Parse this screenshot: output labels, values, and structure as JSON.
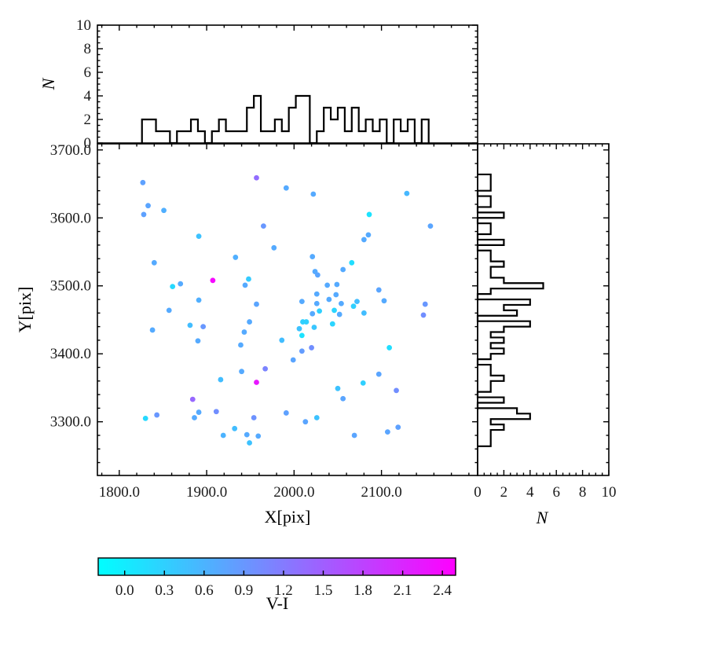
{
  "figure": {
    "background": "#ffffff",
    "axis_color": "#000000"
  },
  "labels": {
    "main_xlabel": "X[pix]",
    "main_ylabel": "Y[pix]",
    "top_hist_ylabel": "N",
    "right_hist_xlabel": "N",
    "colorbar_label": "V-I"
  },
  "chart_data": [
    {
      "id": "main-scatter",
      "type": "scatter",
      "xlabel": "X[pix]",
      "ylabel": "Y[pix]",
      "xlim": [
        1775,
        2210
      ],
      "ylim": [
        3221,
        3709
      ],
      "xticks": {
        "values": [
          1800,
          1900,
          2000,
          2100
        ],
        "labels": [
          "1800.0",
          "1900.0",
          "2000.0",
          "2100.0"
        ]
      },
      "yticks": {
        "values": [
          3700,
          3600,
          3500,
          3400,
          3300
        ],
        "labels": [
          "3700.0",
          "3600.0",
          "3500.0",
          "3400.0",
          "3300.0"
        ]
      },
      "minor_step_x": 20,
      "minor_step_y": 20,
      "color_scale_label": "V-I",
      "points_format": [
        "x_pix",
        "y_pix",
        "v_minus_i"
      ],
      "points": [
        [
          1827,
          3652,
          0.8
        ],
        [
          1957,
          3659,
          1.35
        ],
        [
          1991,
          3644,
          0.7
        ],
        [
          1833,
          3618,
          0.75
        ],
        [
          1828,
          3605,
          0.8
        ],
        [
          1851,
          3611,
          0.65
        ],
        [
          1965,
          3588,
          0.9
        ],
        [
          1891,
          3573,
          0.45
        ],
        [
          1977,
          3556,
          0.7
        ],
        [
          1933,
          3542,
          0.65
        ],
        [
          1840,
          3534,
          0.7
        ],
        [
          1861,
          3499,
          0.2
        ],
        [
          1870,
          3503,
          0.7
        ],
        [
          1907,
          3508,
          2.4
        ],
        [
          1948,
          3510,
          0.35
        ],
        [
          1944,
          3501,
          0.7
        ],
        [
          1891,
          3479,
          0.65
        ],
        [
          1957,
          3473,
          0.75
        ],
        [
          2022,
          3635,
          0.7
        ],
        [
          2129,
          3636,
          0.55
        ],
        [
          2086,
          3605,
          0.1
        ],
        [
          2156,
          3588,
          0.75
        ],
        [
          2085,
          3575,
          0.7
        ],
        [
          2080,
          3568,
          0.7
        ],
        [
          2021,
          3543,
          0.7
        ],
        [
          2066,
          3534,
          0.15
        ],
        [
          2056,
          3524,
          0.7
        ],
        [
          2024,
          3521,
          0.7
        ],
        [
          2027,
          3516,
          0.75
        ],
        [
          2038,
          3501,
          0.7
        ],
        [
          2049,
          3502,
          0.7
        ],
        [
          2026,
          3488,
          0.7
        ],
        [
          2048,
          3487,
          0.7
        ],
        [
          2097,
          3494,
          0.75
        ],
        [
          2040,
          3480,
          0.7
        ],
        [
          2054,
          3474,
          0.7
        ],
        [
          2072,
          3477,
          0.5
        ],
        [
          2103,
          3478,
          0.7
        ],
        [
          2150,
          3473,
          0.9
        ],
        [
          2009,
          3477,
          0.7
        ],
        [
          2026,
          3474,
          0.7
        ],
        [
          1857,
          3464,
          0.7
        ],
        [
          1881,
          3442,
          0.5
        ],
        [
          1896,
          3440,
          0.9
        ],
        [
          1838,
          3435,
          0.7
        ],
        [
          1890,
          3419,
          0.7
        ],
        [
          1939,
          3413,
          0.7
        ],
        [
          1949,
          3447,
          0.7
        ],
        [
          1943,
          3432,
          0.7
        ],
        [
          1986,
          3420,
          0.5
        ],
        [
          1967,
          3378,
          1.1
        ],
        [
          1940,
          3374,
          0.7
        ],
        [
          1916,
          3362,
          0.5
        ],
        [
          1957,
          3358,
          2.25
        ],
        [
          1884,
          3333,
          1.4
        ],
        [
          1891,
          3314,
          0.7
        ],
        [
          1911,
          3315,
          1.0
        ],
        [
          1886,
          3306,
          0.7
        ],
        [
          1843,
          3310,
          0.9
        ],
        [
          1830,
          3305,
          0.2
        ],
        [
          1954,
          3306,
          0.95
        ],
        [
          1932,
          3290,
          0.5
        ],
        [
          1919,
          3280,
          0.6
        ],
        [
          1946,
          3281,
          0.7
        ],
        [
          1959,
          3279,
          0.7
        ],
        [
          1949,
          3269,
          0.45
        ],
        [
          1991,
          3313,
          0.8
        ],
        [
          2021,
          3459,
          0.7
        ],
        [
          2029,
          3463,
          0.3
        ],
        [
          2046,
          3464,
          0.25
        ],
        [
          2052,
          3458,
          0.7
        ],
        [
          2068,
          3470,
          0.3
        ],
        [
          2080,
          3460,
          0.5
        ],
        [
          2148,
          3457,
          1.0
        ],
        [
          2010,
          3447,
          0.3
        ],
        [
          2014,
          3447,
          0.3
        ],
        [
          2023,
          3439,
          0.4
        ],
        [
          2044,
          3444,
          0.25
        ],
        [
          2006,
          3437,
          0.45
        ],
        [
          2009,
          3427,
          0.1
        ],
        [
          2020,
          3409,
          1.0
        ],
        [
          2009,
          3404,
          0.85
        ],
        [
          1999,
          3391,
          0.75
        ],
        [
          2109,
          3409,
          0.15
        ],
        [
          2097,
          3370,
          0.75
        ],
        [
          2079,
          3357,
          0.3
        ],
        [
          2050,
          3349,
          0.45
        ],
        [
          2117,
          3346,
          1.0
        ],
        [
          2056,
          3334,
          0.75
        ],
        [
          2026,
          3306,
          0.45
        ],
        [
          2013,
          3300,
          0.75
        ],
        [
          2119,
          3292,
          0.8
        ],
        [
          2107,
          3285,
          0.75
        ],
        [
          2069,
          3280,
          0.75
        ]
      ]
    },
    {
      "id": "top-histogram",
      "type": "bar",
      "orientation": "vertical",
      "ylabel": "N",
      "ylim": [
        0,
        10
      ],
      "yticks": {
        "values": [
          0,
          2,
          4,
          6,
          8,
          10
        ],
        "labels": [
          "0",
          "2",
          "4",
          "6",
          "8",
          "10"
        ]
      },
      "minor_step": 0.5,
      "bin_start": 1826,
      "bin_step": 8,
      "counts": [
        2,
        2,
        1,
        1,
        0,
        1,
        1,
        2,
        1,
        0,
        1,
        2,
        1,
        1,
        1,
        3,
        4,
        1,
        1,
        2,
        1,
        3,
        4,
        4,
        0,
        1,
        3,
        2,
        3,
        1,
        3,
        1,
        2,
        1,
        2,
        0,
        2,
        1,
        2,
        0,
        2
      ]
    },
    {
      "id": "right-histogram",
      "type": "bar",
      "orientation": "horizontal",
      "xlabel": "N",
      "xlim": [
        0,
        10
      ],
      "xticks": {
        "values": [
          0,
          2,
          4,
          6,
          8,
          10
        ],
        "labels": [
          "0",
          "2",
          "4",
          "6",
          "8",
          "10"
        ]
      },
      "minor_step": 0.5,
      "bin_start": 3664,
      "bin_step": -8,
      "counts": [
        1,
        1,
        1,
        0,
        1,
        1,
        0,
        2,
        0,
        1,
        1,
        0,
        2,
        0,
        1,
        1,
        2,
        1,
        1,
        2,
        5,
        1,
        0,
        4,
        2,
        3,
        0,
        4,
        2,
        1,
        2,
        1,
        2,
        1,
        0,
        1,
        1,
        2,
        1,
        1,
        0,
        2,
        0,
        3,
        4,
        1,
        2,
        1,
        1,
        1
      ]
    },
    {
      "id": "colorbar",
      "type": "colorbar",
      "label": "V-I",
      "vmin": -0.2,
      "vmax": 2.5,
      "cmap": "cool",
      "cmap_start": "#00ffff",
      "cmap_end": "#ff00ff",
      "ticks": {
        "values": [
          0.0,
          0.3,
          0.6,
          0.9,
          1.2,
          1.5,
          1.8,
          2.1,
          2.4
        ],
        "labels": [
          "0.0",
          "0.3",
          "0.6",
          "0.9",
          "1.2",
          "1.5",
          "1.8",
          "2.1",
          "2.4"
        ]
      }
    }
  ]
}
